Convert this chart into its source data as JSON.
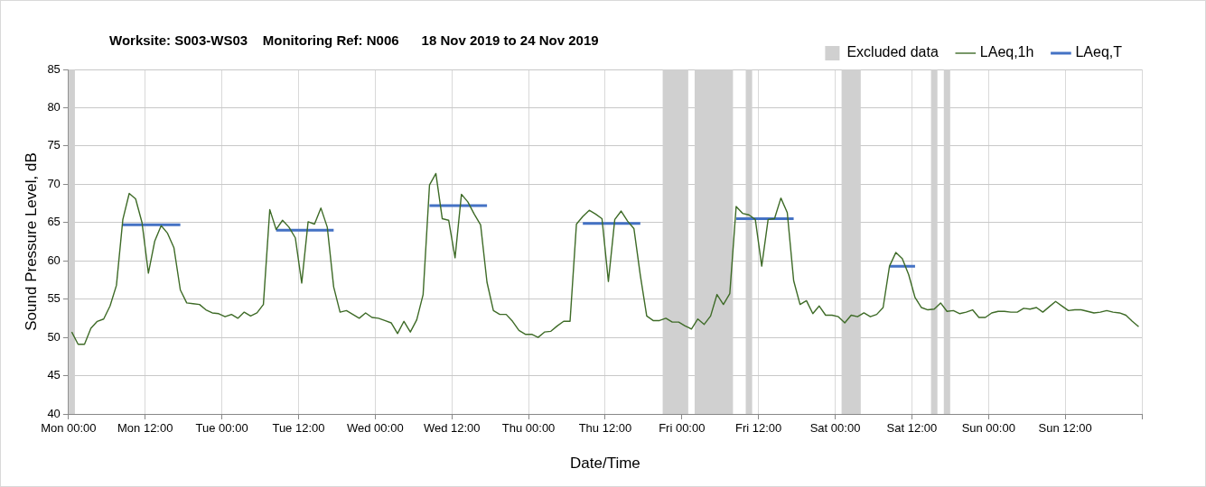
{
  "chart_data": {
    "type": "line",
    "title": "Worksite: S003-WS03    Monitoring Ref: N006      18 Nov 2019 to 24 Nov 2019",
    "xlabel": "Date/Time",
    "ylabel": "Sound Pressure Level, dB",
    "xlim": [
      "2019-11-18T00:00",
      "2019-11-25T00:00"
    ],
    "xticks": [
      {
        "value": "2019-11-18T00:00",
        "label": "Mon 00:00"
      },
      {
        "value": "2019-11-18T12:00",
        "label": "Mon 12:00"
      },
      {
        "value": "2019-11-19T00:00",
        "label": "Tue 00:00"
      },
      {
        "value": "2019-11-19T12:00",
        "label": "Tue 12:00"
      },
      {
        "value": "2019-11-20T00:00",
        "label": "Wed 00:00"
      },
      {
        "value": "2019-11-20T12:00",
        "label": "Wed 12:00"
      },
      {
        "value": "2019-11-21T00:00",
        "label": "Thu 00:00"
      },
      {
        "value": "2019-11-21T12:00",
        "label": "Thu 12:00"
      },
      {
        "value": "2019-11-22T00:00",
        "label": "Fri 00:00"
      },
      {
        "value": "2019-11-22T12:00",
        "label": "Fri 12:00"
      },
      {
        "value": "2019-11-23T00:00",
        "label": "Sat 00:00"
      },
      {
        "value": "2019-11-23T12:00",
        "label": "Sat 12:00"
      },
      {
        "value": "2019-11-24T00:00",
        "label": "Sun 00:00"
      },
      {
        "value": "2019-11-24T12:00",
        "label": "Sun 12:00"
      },
      {
        "value": "2019-11-25T00:00",
        "label": null
      }
    ],
    "ylim": [
      40,
      85
    ],
    "yticks": [
      40,
      45,
      50,
      55,
      60,
      65,
      70,
      75,
      80,
      85
    ],
    "grid": true,
    "legend": "top right",
    "marker": "none",
    "line_style": "solid",
    "bands": [
      {
        "axis": "x",
        "from": "2019-11-18T00:00",
        "to": "2019-11-18T01:00",
        "label": "Excluded data",
        "color": "#d0d0d0"
      },
      {
        "axis": "x",
        "from": "2019-11-21T21:00",
        "to": "2019-11-22T01:00",
        "color": "#d0d0d0"
      },
      {
        "axis": "x",
        "from": "2019-11-22T02:00",
        "to": "2019-11-22T08:00",
        "color": "#d0d0d0"
      },
      {
        "axis": "x",
        "from": "2019-11-22T10:00",
        "to": "2019-11-22T11:00",
        "color": "#d0d0d0"
      },
      {
        "axis": "x",
        "from": "2019-11-23T01:00",
        "to": "2019-11-23T04:00",
        "color": "#d0d0d0"
      },
      {
        "axis": "x",
        "from": "2019-11-23T15:00",
        "to": "2019-11-23T16:00",
        "color": "#d0d0d0"
      },
      {
        "axis": "x",
        "from": "2019-11-23T17:00",
        "to": "2019-11-23T18:00",
        "color": "#d0d0d0"
      }
    ],
    "series": [
      {
        "name": "LAeq,1h",
        "color": "#3e6b27",
        "x": [
          "2019-11-18T00:30",
          "2019-11-18T01:30",
          "2019-11-18T02:30",
          "2019-11-18T03:30",
          "2019-11-18T04:30",
          "2019-11-18T05:30",
          "2019-11-18T06:30",
          "2019-11-18T07:30",
          "2019-11-18T08:30",
          "2019-11-18T09:30",
          "2019-11-18T10:30",
          "2019-11-18T11:30",
          "2019-11-18T12:30",
          "2019-11-18T13:30",
          "2019-11-18T14:30",
          "2019-11-18T15:30",
          "2019-11-18T16:30",
          "2019-11-18T17:30",
          "2019-11-18T18:30",
          "2019-11-18T19:30",
          "2019-11-18T20:30",
          "2019-11-18T21:30",
          "2019-11-18T22:30",
          "2019-11-18T23:30",
          "2019-11-19T00:30",
          "2019-11-19T01:30",
          "2019-11-19T02:30",
          "2019-11-19T03:30",
          "2019-11-19T04:30",
          "2019-11-19T05:30",
          "2019-11-19T06:30",
          "2019-11-19T07:30",
          "2019-11-19T08:30",
          "2019-11-19T09:30",
          "2019-11-19T10:30",
          "2019-11-19T11:30",
          "2019-11-19T12:30",
          "2019-11-19T13:30",
          "2019-11-19T14:30",
          "2019-11-19T15:30",
          "2019-11-19T16:30",
          "2019-11-19T17:30",
          "2019-11-19T18:30",
          "2019-11-19T19:30",
          "2019-11-19T20:30",
          "2019-11-19T21:30",
          "2019-11-19T22:30",
          "2019-11-19T23:30",
          "2019-11-20T00:30",
          "2019-11-20T01:30",
          "2019-11-20T02:30",
          "2019-11-20T03:30",
          "2019-11-20T04:30",
          "2019-11-20T05:30",
          "2019-11-20T06:30",
          "2019-11-20T07:30",
          "2019-11-20T08:30",
          "2019-11-20T09:30",
          "2019-11-20T10:30",
          "2019-11-20T11:30",
          "2019-11-20T12:30",
          "2019-11-20T13:30",
          "2019-11-20T14:30",
          "2019-11-20T15:30",
          "2019-11-20T16:30",
          "2019-11-20T17:30",
          "2019-11-20T18:30",
          "2019-11-20T19:30",
          "2019-11-20T20:30",
          "2019-11-20T21:30",
          "2019-11-20T22:30",
          "2019-11-20T23:30",
          "2019-11-21T00:30",
          "2019-11-21T01:30",
          "2019-11-21T02:30",
          "2019-11-21T03:30",
          "2019-11-21T04:30",
          "2019-11-21T05:30",
          "2019-11-21T06:30",
          "2019-11-21T07:30",
          "2019-11-21T08:30",
          "2019-11-21T09:30",
          "2019-11-21T10:30",
          "2019-11-21T11:30",
          "2019-11-21T12:30",
          "2019-11-21T13:30",
          "2019-11-21T14:30",
          "2019-11-21T15:30",
          "2019-11-21T16:30",
          "2019-11-21T17:30",
          "2019-11-21T18:30",
          "2019-11-21T19:30",
          "2019-11-21T20:30",
          "2019-11-21T21:30",
          "2019-11-21T22:30",
          "2019-11-21T23:30",
          "2019-11-22T00:30",
          "2019-11-22T01:30",
          "2019-11-22T02:30",
          "2019-11-22T03:30",
          "2019-11-22T04:30",
          "2019-11-22T05:30",
          "2019-11-22T06:30",
          "2019-11-22T07:30",
          "2019-11-22T08:30",
          "2019-11-22T09:30",
          "2019-11-22T10:30",
          "2019-11-22T11:30",
          "2019-11-22T12:30",
          "2019-11-22T13:30",
          "2019-11-22T14:30",
          "2019-11-22T15:30",
          "2019-11-22T16:30",
          "2019-11-22T17:30",
          "2019-11-22T18:30",
          "2019-11-22T19:30",
          "2019-11-22T20:30",
          "2019-11-22T21:30",
          "2019-11-22T22:30",
          "2019-11-22T23:30",
          "2019-11-23T00:30",
          "2019-11-23T01:30",
          "2019-11-23T02:30",
          "2019-11-23T03:30",
          "2019-11-23T04:30",
          "2019-11-23T05:30",
          "2019-11-23T06:30",
          "2019-11-23T07:30",
          "2019-11-23T08:30",
          "2019-11-23T09:30",
          "2019-11-23T10:30",
          "2019-11-23T11:30",
          "2019-11-23T12:30",
          "2019-11-23T13:30",
          "2019-11-23T14:30",
          "2019-11-23T15:30",
          "2019-11-23T16:30",
          "2019-11-23T17:30",
          "2019-11-23T18:30",
          "2019-11-23T19:30",
          "2019-11-23T20:30",
          "2019-11-23T21:30",
          "2019-11-23T22:30",
          "2019-11-23T23:30",
          "2019-11-24T00:30",
          "2019-11-24T01:30",
          "2019-11-24T02:30",
          "2019-11-24T03:30",
          "2019-11-24T04:30",
          "2019-11-24T05:30",
          "2019-11-24T06:30",
          "2019-11-24T07:30",
          "2019-11-24T08:30",
          "2019-11-24T09:30",
          "2019-11-24T10:30",
          "2019-11-24T11:30",
          "2019-11-24T12:30",
          "2019-11-24T13:30",
          "2019-11-24T14:30",
          "2019-11-24T15:30",
          "2019-11-24T16:30",
          "2019-11-24T17:30",
          "2019-11-24T18:30",
          "2019-11-24T19:30",
          "2019-11-24T20:30",
          "2019-11-24T21:30",
          "2019-11-24T22:30",
          "2019-11-24T23:30"
        ],
        "values": [
          50.7,
          49.1,
          49.1,
          51.2,
          52.1,
          52.4,
          54.1,
          56.8,
          65.4,
          68.8,
          68.1,
          65.0,
          58.4,
          62.6,
          64.6,
          63.6,
          61.7,
          56.2,
          54.5,
          54.4,
          54.3,
          53.6,
          53.2,
          53.1,
          52.7,
          53.0,
          52.5,
          53.3,
          52.8,
          53.2,
          54.3,
          66.7,
          64.1,
          65.3,
          64.4,
          63.0,
          57.1,
          65.1,
          64.8,
          66.9,
          64.4,
          56.6,
          53.3,
          53.5,
          53.0,
          52.5,
          53.2,
          52.6,
          52.5,
          52.2,
          51.9,
          50.5,
          52.1,
          50.7,
          52.3,
          55.6,
          69.9,
          71.4,
          65.5,
          65.3,
          60.4,
          68.7,
          67.7,
          66.1,
          64.7,
          57.2,
          53.5,
          53.0,
          53.0,
          52.1,
          50.9,
          50.4,
          50.4,
          50.0,
          50.7,
          50.8,
          51.5,
          52.1,
          52.1,
          64.8,
          65.8,
          66.6,
          66.1,
          65.5,
          57.3,
          65.4,
          66.5,
          65.2,
          64.2,
          58.1,
          52.8,
          52.2,
          52.2,
          52.5,
          52.0,
          52.0,
          51.5,
          51.1,
          52.4,
          51.7,
          52.8,
          55.6,
          54.3,
          55.7,
          67.1,
          66.2,
          66.0,
          65.4,
          59.3,
          65.4,
          65.5,
          68.2,
          66.3,
          57.4,
          54.3,
          54.8,
          53.1,
          54.1,
          52.9,
          52.9,
          52.7,
          51.9,
          52.9,
          52.7,
          53.2,
          52.7,
          53.0,
          53.9,
          59.3,
          61.1,
          60.3,
          58.2,
          55.2,
          53.9,
          53.6,
          53.7,
          54.5,
          53.4,
          53.5,
          53.1,
          53.3,
          53.6,
          52.6,
          52.6,
          53.2,
          53.4,
          53.4,
          53.3,
          53.3,
          53.8,
          53.7,
          53.9,
          53.3,
          54.0,
          54.7,
          54.1,
          53.5,
          53.6,
          53.6,
          53.4,
          53.2,
          53.3,
          53.5,
          53.3,
          53.2,
          52.9,
          52.1,
          51.4
        ]
      },
      {
        "name": "LAeq,T",
        "color": "#4472c4",
        "x": [
          "2019-11-18T08:30",
          "2019-11-18T17:30",
          "2019-11-19T01:00",
          "2019-11-19T08:30",
          "2019-11-19T17:30",
          "2019-11-20T01:00",
          "2019-11-20T08:30",
          "2019-11-20T17:30",
          "2019-11-21T01:00",
          "2019-11-21T08:30",
          "2019-11-21T17:30",
          "2019-11-22T01:00",
          "2019-11-22T08:30",
          "2019-11-22T17:30",
          "2019-11-23T01:00",
          "2019-11-23T08:30",
          "2019-11-23T12:30"
        ],
        "values": [
          64.7,
          64.7,
          null,
          64.0,
          64.0,
          null,
          67.2,
          67.2,
          null,
          64.9,
          64.9,
          null,
          65.5,
          65.5,
          null,
          59.3,
          59.3
        ]
      }
    ]
  }
}
